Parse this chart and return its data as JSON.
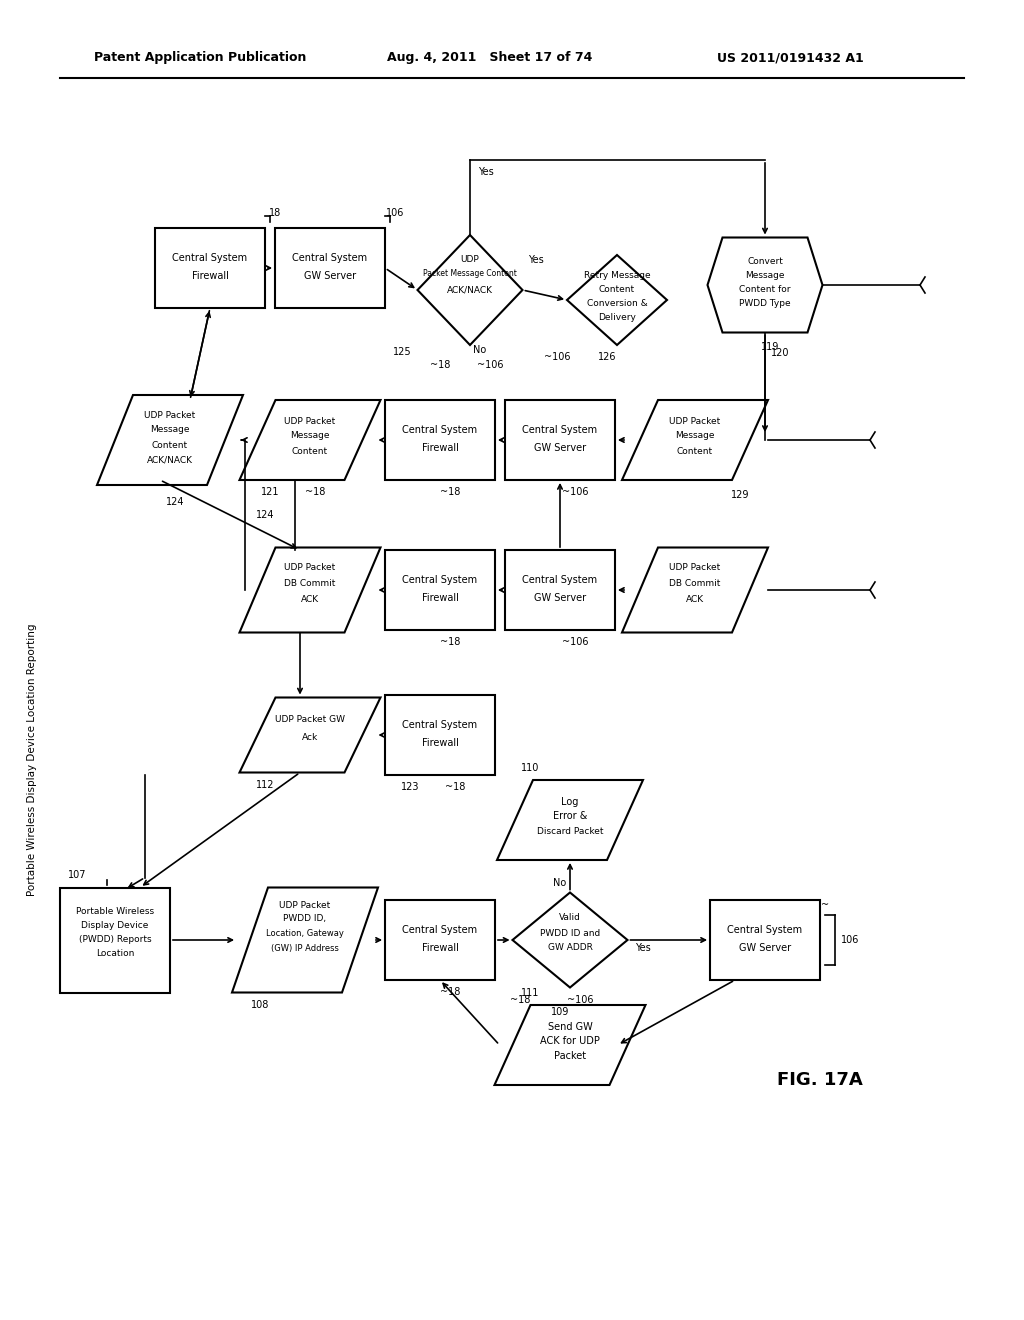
{
  "title_left": "Patent Application Publication",
  "title_mid": "Aug. 4, 2011   Sheet 17 of 74",
  "title_right": "US 2011/0191432 A1",
  "fig_label": "FIG. 17A",
  "vertical_label": "Portable Wireless Display Device Location Reporting",
  "background_color": "#ffffff",
  "line_color": "#000000",
  "text_color": "#000000"
}
